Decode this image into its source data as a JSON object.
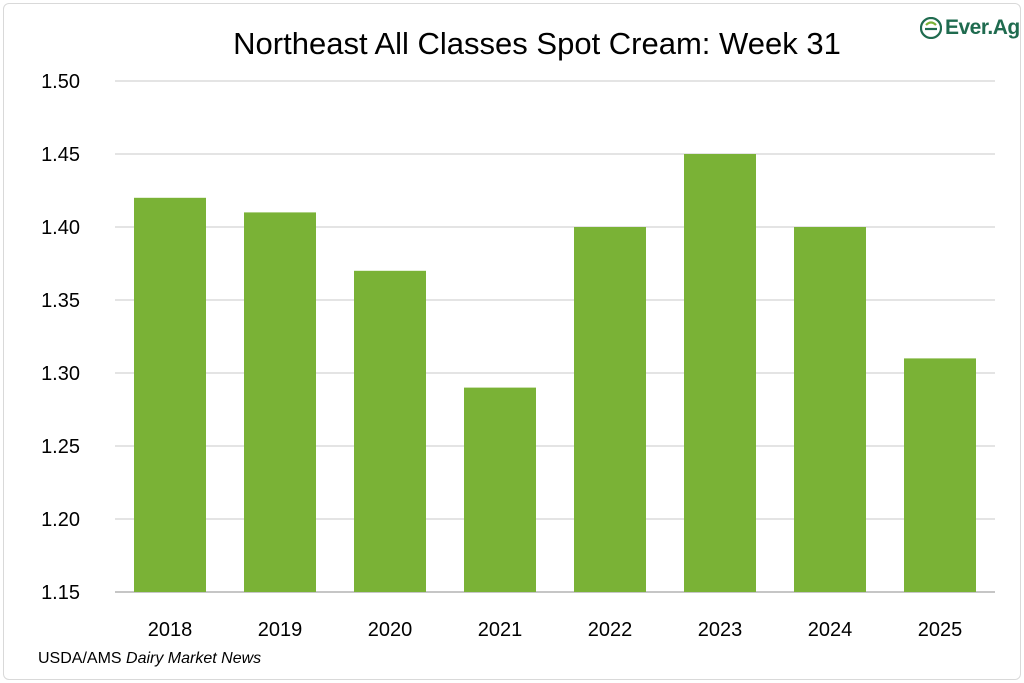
{
  "logo": {
    "text": "Ever.Ag",
    "icon": "ever-ag-logo-icon",
    "color": "#1f6b4f"
  },
  "source": {
    "prefix": "USDA/AMS ",
    "italic": "Dairy Market News"
  },
  "chart_data": {
    "type": "bar",
    "title": "Northeast All Classes Spot Cream: Week 31",
    "xlabel": "",
    "ylabel": "",
    "categories": [
      "2018",
      "2019",
      "2020",
      "2021",
      "2022",
      "2023",
      "2024",
      "2025"
    ],
    "values": [
      1.42,
      1.41,
      1.37,
      1.29,
      1.4,
      1.45,
      1.4,
      1.31
    ],
    "ylim": [
      1.15,
      1.5
    ],
    "yticks": [
      "1.15",
      "1.20",
      "1.25",
      "1.30",
      "1.35",
      "1.40",
      "1.45",
      "1.50"
    ],
    "grid": true,
    "legend": "none",
    "bar_color": "#7ab236",
    "grid_color": "#c8c8c8"
  }
}
